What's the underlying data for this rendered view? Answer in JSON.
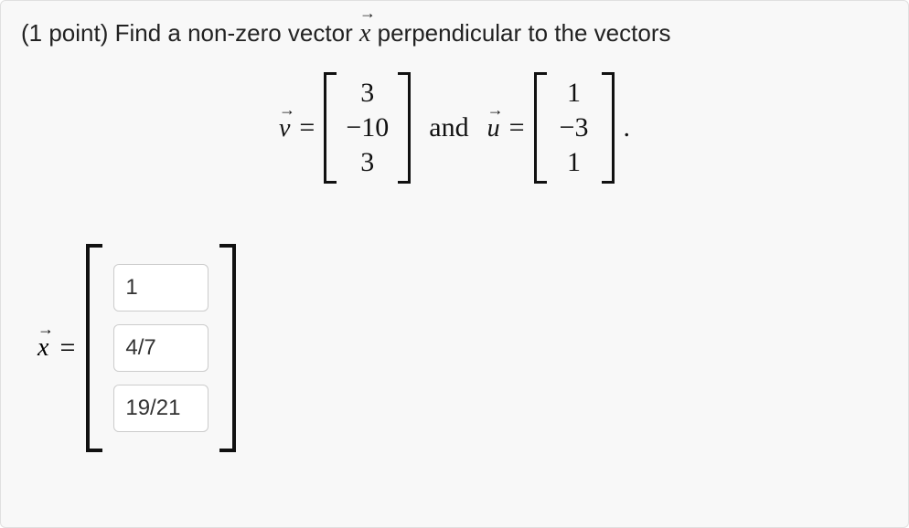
{
  "question": {
    "points_prefix": "(1 point) ",
    "text_before_x": "Find a non-zero vector ",
    "vector_var": "x",
    "text_after_x": " perpendicular to the vectors"
  },
  "equation": {
    "v_symbol": "v",
    "u_symbol": "u",
    "equals": "=",
    "and_word": "and",
    "period": "."
  },
  "vector_v": {
    "entries": [
      "3",
      "−10",
      "3"
    ]
  },
  "vector_u": {
    "entries": [
      "1",
      "−3",
      "1"
    ]
  },
  "answer": {
    "x_symbol": "x",
    "equals": "=",
    "values": [
      "1",
      "4/7",
      "19/21"
    ]
  },
  "style": {
    "container_bg": "#f8f8f8",
    "container_border": "#e0e0e0",
    "text_color": "#222",
    "math_color": "#111",
    "input_border": "#ccc",
    "input_bg": "#ffffff",
    "question_fontsize": 26,
    "math_fontsize": 30,
    "input_fontsize": 24,
    "bracket_color": "#111"
  }
}
